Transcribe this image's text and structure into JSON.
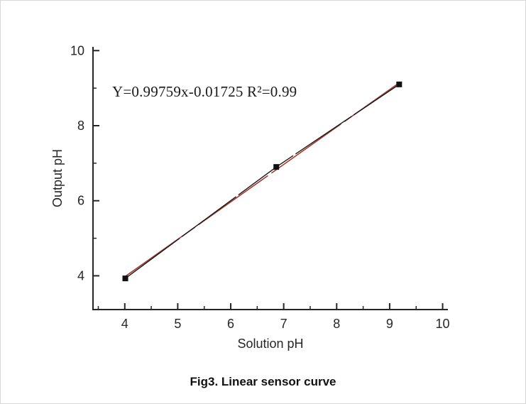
{
  "figure": {
    "caption": "Fig3. Linear sensor curve"
  },
  "chart_data": {
    "type": "scatter",
    "title": "",
    "xlabel": "Solution pH",
    "ylabel": "Output pH",
    "xlim": [
      3.4,
      10.1
    ],
    "ylim": [
      3.1,
      10.1
    ],
    "x_ticks": [
      4,
      5,
      6,
      7,
      8,
      9,
      10
    ],
    "x_minor_ticks": [
      3.5,
      4.5,
      5.5,
      6.5,
      7.5,
      8.5,
      9.5
    ],
    "y_ticks": [
      4,
      6,
      8,
      10
    ],
    "y_minor_ticks": [
      5,
      7,
      9
    ],
    "points": [
      [
        4.01,
        3.93
      ],
      [
        6.86,
        6.9
      ],
      [
        9.18,
        9.1
      ]
    ],
    "fit": {
      "label": "Y=0.99759x-0.01725",
      "slope": 0.99759,
      "intercept": -0.01725,
      "r2": 0.99,
      "r2_label": "R²=0.99",
      "color": "#a3372a"
    },
    "annotation": "Y=0.99759x-0.01725 R²=0.99",
    "axis_color": "#262626",
    "point_color": "#111111",
    "line_color": "#1a1a1a",
    "grid": false,
    "legend": null
  }
}
